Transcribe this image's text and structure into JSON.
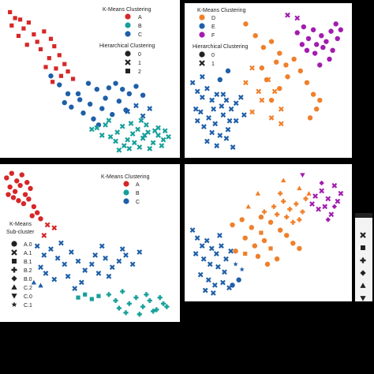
{
  "colors": {
    "A": "#d62728",
    "B": "#17a09a",
    "C": "#1f5fa8",
    "D": "#f07f2a",
    "E": "#1f5fa8",
    "F": "#a21caf",
    "panel_bg": "#ffffff",
    "page_bg": "#000000",
    "cut_panel_bg": "#f3f3f3"
  },
  "chart_data": [
    {
      "type": "scatter",
      "panel": "top-left",
      "axes": "hidden",
      "legend": {
        "placement": "top-right",
        "hue_title": "K-Means Clustering",
        "hue_entries": [
          {
            "label": "A",
            "color": "#d62728"
          },
          {
            "label": "B",
            "color": "#17a09a"
          },
          {
            "label": "C",
            "color": "#1f5fa8"
          }
        ],
        "style_title": "Hierarchical Clustering",
        "style_entries": [
          {
            "label": "0",
            "marker": "circle"
          },
          {
            "label": "1",
            "marker": "x"
          },
          {
            "label": "2",
            "marker": "square"
          }
        ]
      },
      "series": [
        {
          "hue": "A",
          "style": "2",
          "color": "#d62728",
          "marker": "square",
          "x": [
            0.04,
            0.07,
            0.05,
            0.1,
            0.12,
            0.15,
            0.18,
            0.09,
            0.2,
            0.24,
            0.28,
            0.22,
            0.3,
            0.33,
            0.27,
            0.36,
            0.31,
            0.38,
            0.34,
            0.41,
            0.29,
            0.25,
            0.14
          ],
          "y": [
            0.95,
            0.91,
            0.86,
            0.9,
            0.84,
            0.88,
            0.8,
            0.79,
            0.75,
            0.82,
            0.77,
            0.7,
            0.72,
            0.66,
            0.64,
            0.6,
            0.57,
            0.55,
            0.52,
            0.5,
            0.48,
            0.58,
            0.73
          ]
        },
        {
          "hue": "C",
          "style": "0",
          "color": "#1f5fa8",
          "marker": "circle",
          "x": [
            0.28,
            0.33,
            0.38,
            0.45,
            0.5,
            0.55,
            0.6,
            0.62,
            0.66,
            0.7,
            0.74,
            0.78,
            0.82,
            0.4,
            0.47,
            0.53,
            0.58,
            0.64,
            0.36,
            0.44,
            0.51,
            0.56,
            0.68,
            0.72
          ],
          "y": [
            0.52,
            0.46,
            0.4,
            0.36,
            0.47,
            0.43,
            0.37,
            0.44,
            0.47,
            0.43,
            0.4,
            0.45,
            0.39,
            0.31,
            0.27,
            0.23,
            0.3,
            0.26,
            0.34,
            0.4,
            0.33,
            0.19,
            0.35,
            0.29
          ]
        },
        {
          "hue": "C",
          "style": "1",
          "color": "#1f5fa8",
          "marker": "x",
          "x": [
            0.73,
            0.78,
            0.82,
            0.86
          ],
          "y": [
            0.28,
            0.32,
            0.25,
            0.3
          ]
        },
        {
          "hue": "B",
          "style": "1",
          "color": "#17a09a",
          "marker": "x",
          "x": [
            0.52,
            0.55,
            0.6,
            0.63,
            0.67,
            0.7,
            0.73,
            0.76,
            0.79,
            0.82,
            0.85,
            0.88,
            0.91,
            0.94,
            0.62,
            0.66,
            0.71,
            0.75,
            0.8,
            0.84,
            0.89,
            0.93,
            0.97,
            0.68,
            0.74,
            0.81,
            0.86,
            0.91,
            0.58,
            0.77,
            0.83,
            0.95
          ],
          "y": [
            0.16,
            0.17,
            0.19,
            0.11,
            0.14,
            0.18,
            0.09,
            0.13,
            0.16,
            0.1,
            0.14,
            0.07,
            0.12,
            0.09,
            0.22,
            0.08,
            0.05,
            0.2,
            0.04,
            0.19,
            0.15,
            0.05,
            0.11,
            0.02,
            0.03,
            0.22,
            0.03,
            0.17,
            0.12,
            0.07,
            0.12,
            0.15
          ]
        }
      ]
    },
    {
      "type": "scatter",
      "panel": "top-right",
      "axes": "hidden",
      "legend": {
        "placement": "top-left",
        "hue_title": "K-Means Clustering",
        "hue_entries": [
          {
            "label": "D",
            "color": "#f07f2a"
          },
          {
            "label": "E",
            "color": "#1f5fa8"
          },
          {
            "label": "F",
            "color": "#a21caf"
          }
        ],
        "style_title": "Hierarchical Clustering",
        "style_entries": [
          {
            "label": "0",
            "marker": "circle"
          },
          {
            "label": "1",
            "marker": "x"
          }
        ]
      },
      "series": [
        {
          "hue": "F",
          "style": "0",
          "color": "#a21caf",
          "marker": "circle",
          "x": [
            0.68,
            0.72,
            0.75,
            0.78,
            0.8,
            0.83,
            0.86,
            0.89,
            0.92,
            0.95,
            0.74,
            0.79,
            0.84,
            0.88,
            0.93,
            0.71,
            0.82,
            0.9
          ],
          "y": [
            0.82,
            0.86,
            0.78,
            0.84,
            0.74,
            0.8,
            0.76,
            0.83,
            0.88,
            0.84,
            0.7,
            0.68,
            0.72,
            0.64,
            0.78,
            0.74,
            0.6,
            0.7
          ]
        },
        {
          "hue": "F",
          "style": "1",
          "color": "#a21caf",
          "marker": "x",
          "x": [
            0.62,
            0.68
          ],
          "y": [
            0.94,
            0.92
          ]
        },
        {
          "hue": "D",
          "style": "0",
          "color": "#f07f2a",
          "marker": "circle",
          "x": [
            0.36,
            0.42,
            0.47,
            0.52,
            0.57,
            0.61,
            0.66,
            0.62,
            0.57,
            0.52,
            0.7,
            0.74,
            0.78,
            0.82,
            0.8,
            0.76,
            0.46,
            0.49,
            0.55
          ],
          "y": [
            0.88,
            0.8,
            0.72,
            0.76,
            0.68,
            0.6,
            0.64,
            0.52,
            0.44,
            0.36,
            0.56,
            0.48,
            0.4,
            0.36,
            0.3,
            0.24,
            0.58,
            0.5,
            0.62
          ]
        },
        {
          "hue": "D",
          "style": "1",
          "color": "#f07f2a",
          "marker": "x",
          "x": [
            0.4,
            0.36,
            0.44,
            0.5,
            0.46,
            0.54,
            0.58,
            0.4,
            0.58,
            0.52
          ],
          "y": [
            0.58,
            0.48,
            0.42,
            0.5,
            0.36,
            0.42,
            0.3,
            0.28,
            0.2,
            0.24
          ]
        },
        {
          "hue": "E",
          "style": "1",
          "color": "#1f5fa8",
          "marker": "x",
          "x": [
            0.03,
            0.06,
            0.09,
            0.12,
            0.15,
            0.18,
            0.21,
            0.24,
            0.27,
            0.3,
            0.08,
            0.13,
            0.17,
            0.22,
            0.26,
            0.05,
            0.1,
            0.15,
            0.2,
            0.25,
            0.3,
            0.35,
            0.12,
            0.18,
            0.24,
            0.28,
            0.06,
            0.16,
            0.22,
            0.09,
            0.33
          ],
          "y": [
            0.48,
            0.42,
            0.38,
            0.44,
            0.36,
            0.4,
            0.32,
            0.36,
            0.3,
            0.34,
            0.28,
            0.24,
            0.2,
            0.26,
            0.22,
            0.3,
            0.18,
            0.14,
            0.12,
            0.16,
            0.22,
            0.26,
            0.08,
            0.05,
            0.1,
            0.04,
            0.22,
            0.3,
            0.4,
            0.52,
            0.38
          ]
        },
        {
          "hue": "E",
          "style": "0",
          "color": "#1f5fa8",
          "marker": "circle",
          "x": [
            0.25,
            0.2
          ],
          "y": [
            0.56,
            0.5
          ]
        }
      ]
    },
    {
      "type": "scatter",
      "panel": "bottom-left",
      "axes": "hidden",
      "legend": {
        "placement": "top-right",
        "hue_title": "K-Means Clustering",
        "hue_entries": [
          {
            "label": "A",
            "color": "#d62728"
          },
          {
            "label": "B",
            "color": "#17a09a"
          },
          {
            "label": "C",
            "color": "#1f5fa8"
          }
        ],
        "style_title": "K-Means\nSub-cluster",
        "style_entries": [
          {
            "label": "A.0",
            "marker": "circle"
          },
          {
            "label": "A.1",
            "marker": "x"
          },
          {
            "label": "B.1",
            "marker": "square"
          },
          {
            "label": "B.2",
            "marker": "plus"
          },
          {
            "label": "B.0",
            "marker": "diamond"
          },
          {
            "label": "C.2",
            "marker": "triangle-up"
          },
          {
            "label": "C.0",
            "marker": "triangle-down"
          },
          {
            "label": "C.1",
            "marker": "star"
          }
        ]
      },
      "series": [
        {
          "hue": "A",
          "style": "A.0",
          "color": "#d62728",
          "marker": "circle",
          "x": [
            0.02,
            0.05,
            0.08,
            0.11,
            0.14,
            0.04,
            0.07,
            0.1,
            0.13,
            0.16,
            0.06,
            0.09,
            0.12,
            0.15,
            0.18,
            0.2,
            0.17,
            0.03,
            0.22
          ],
          "y": [
            0.93,
            0.96,
            0.91,
            0.95,
            0.9,
            0.87,
            0.84,
            0.88,
            0.82,
            0.86,
            0.8,
            0.78,
            0.76,
            0.79,
            0.74,
            0.7,
            0.68,
            0.82,
            0.66
          ]
        },
        {
          "hue": "A",
          "style": "A.1",
          "color": "#d62728",
          "marker": "x",
          "x": [
            0.26,
            0.3,
            0.24
          ],
          "y": [
            0.62,
            0.6,
            0.55
          ]
        },
        {
          "hue": "C",
          "style": "C.1",
          "color": "#1f5fa8",
          "marker": "x",
          "x": [
            0.2,
            0.24,
            0.28,
            0.32,
            0.36,
            0.4,
            0.44,
            0.48,
            0.52,
            0.56,
            0.6,
            0.64,
            0.68,
            0.72,
            0.76,
            0.8,
            0.25,
            0.3,
            0.38,
            0.46,
            0.54,
            0.62,
            0.7,
            0.22,
            0.34,
            0.42,
            0.58
          ],
          "y": [
            0.48,
            0.42,
            0.46,
            0.4,
            0.36,
            0.44,
            0.38,
            0.32,
            0.36,
            0.3,
            0.4,
            0.34,
            0.38,
            0.42,
            0.36,
            0.44,
            0.3,
            0.26,
            0.28,
            0.24,
            0.42,
            0.28,
            0.46,
            0.34,
            0.5,
            0.2,
            0.48
          ]
        },
        {
          "hue": "C",
          "style": "C.2",
          "color": "#1f5fa8",
          "marker": "triangle-up",
          "x": [
            0.18,
            0.22
          ],
          "y": [
            0.24,
            0.22
          ]
        },
        {
          "hue": "B",
          "style": "B.2",
          "color": "#17a09a",
          "marker": "plus",
          "x": [
            0.62,
            0.66,
            0.7,
            0.74,
            0.78,
            0.82,
            0.86,
            0.9,
            0.94,
            0.72,
            0.8,
            0.88,
            0.96,
            0.68,
            0.84,
            0.92
          ],
          "y": [
            0.16,
            0.12,
            0.18,
            0.1,
            0.14,
            0.08,
            0.12,
            0.06,
            0.1,
            0.04,
            0.03,
            0.05,
            0.08,
            0.07,
            0.16,
            0.14
          ]
        },
        {
          "hue": "B",
          "style": "B.1",
          "color": "#17a09a",
          "marker": "square",
          "x": [
            0.44,
            0.48,
            0.52,
            0.56
          ],
          "y": [
            0.14,
            0.16,
            0.13,
            0.15
          ]
        }
      ]
    },
    {
      "type": "scatter",
      "panel": "bottom-right",
      "axes": "hidden",
      "legend": null,
      "series": [
        {
          "hue": "F",
          "style": "1",
          "color": "#a21caf",
          "marker": "x",
          "x": [
            0.8,
            0.84,
            0.88,
            0.92,
            0.96,
            0.86,
            0.9,
            0.94,
            0.82,
            0.78
          ],
          "y": [
            0.78,
            0.82,
            0.76,
            0.86,
            0.8,
            0.7,
            0.64,
            0.74,
            0.68,
            0.72
          ]
        },
        {
          "hue": "F",
          "style": "0",
          "color": "#a21caf",
          "marker": "diamond",
          "x": [
            0.84,
            0.92,
            0.88
          ],
          "y": [
            0.88,
            0.7,
            0.6
          ]
        },
        {
          "hue": "F",
          "style": "2",
          "color": "#a21caf",
          "marker": "triangle-down",
          "x": [
            0.72
          ],
          "y": [
            0.94
          ]
        },
        {
          "hue": "D",
          "style": "0",
          "color": "#f07f2a",
          "marker": "circle",
          "x": [
            0.28,
            0.34,
            0.4,
            0.46,
            0.52,
            0.58,
            0.62,
            0.48,
            0.42,
            0.36,
            0.3,
            0.66,
            0.7,
            0.56,
            0.5,
            0.44
          ],
          "y": [
            0.56,
            0.6,
            0.54,
            0.62,
            0.58,
            0.52,
            0.48,
            0.44,
            0.4,
            0.46,
            0.36,
            0.42,
            0.38,
            0.3,
            0.26,
            0.32
          ]
        },
        {
          "hue": "D",
          "style": "1",
          "color": "#f07f2a",
          "marker": "plus",
          "x": [
            0.48,
            0.54,
            0.6,
            0.64,
            0.68,
            0.72,
            0.58,
            0.62,
            0.66,
            0.56,
            0.7,
            0.74
          ],
          "y": [
            0.66,
            0.7,
            0.74,
            0.68,
            0.72,
            0.66,
            0.8,
            0.62,
            0.58,
            0.64,
            0.6,
            0.76
          ]
        },
        {
          "hue": "D",
          "style": "2",
          "color": "#f07f2a",
          "marker": "triangle-up",
          "x": [
            0.38,
            0.44,
            0.7,
            0.76,
            0.6
          ],
          "y": [
            0.7,
            0.8,
            0.84,
            0.8,
            0.9
          ]
        },
        {
          "hue": "D",
          "style": "3",
          "color": "#f07f2a",
          "marker": "square",
          "x": [
            0.36,
            0.52,
            0.46
          ],
          "y": [
            0.34,
            0.38,
            0.5
          ]
        },
        {
          "hue": "E",
          "style": "1",
          "color": "#1f5fa8",
          "marker": "x",
          "x": [
            0.03,
            0.06,
            0.09,
            0.12,
            0.15,
            0.18,
            0.21,
            0.24,
            0.27,
            0.05,
            0.1,
            0.14,
            0.19,
            0.23,
            0.08,
            0.13,
            0.17,
            0.22,
            0.26,
            0.11,
            0.16,
            0.2
          ],
          "y": [
            0.52,
            0.46,
            0.4,
            0.44,
            0.38,
            0.34,
            0.4,
            0.3,
            0.36,
            0.34,
            0.3,
            0.26,
            0.24,
            0.2,
            0.18,
            0.14,
            0.1,
            0.12,
            0.08,
            0.06,
            0.04,
            0.48
          ]
        },
        {
          "hue": "E",
          "style": "0",
          "color": "#1f5fa8",
          "marker": "circle",
          "x": [
            0.28,
            0.32
          ],
          "y": [
            0.1,
            0.14
          ]
        },
        {
          "hue": "E",
          "style": "4",
          "color": "#1f5fa8",
          "marker": "star",
          "x": [
            0.3,
            0.34
          ],
          "y": [
            0.26,
            0.22
          ]
        }
      ]
    }
  ],
  "cut_legend": {
    "entries": [
      {
        "marker": "x"
      },
      {
        "marker": "square"
      },
      {
        "marker": "plus"
      },
      {
        "marker": "diamond"
      },
      {
        "marker": "triangle-up"
      },
      {
        "marker": "triangle-down"
      },
      {
        "marker": "star"
      }
    ]
  }
}
